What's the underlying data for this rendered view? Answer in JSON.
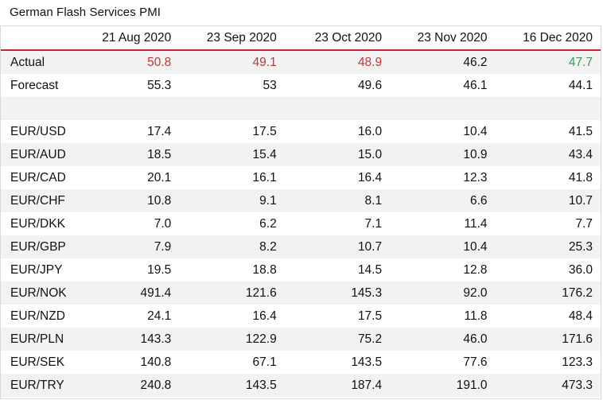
{
  "title": "German Flash Services PMI",
  "colors": {
    "header_rule": "#c0282f",
    "negative": "#c0393b",
    "positive": "#3a9a5b",
    "row_band": "#f2f2f2"
  },
  "chart_data": {
    "type": "table",
    "title": "German Flash Services PMI",
    "columns": [
      "21 Aug 2020",
      "23 Sep 2020",
      "23 Oct 2020",
      "23 Nov 2020",
      "16 Dec 2020"
    ],
    "rows": [
      {
        "label": "Actual",
        "values": [
          "50.8",
          "49.1",
          "48.9",
          "46.2",
          "47.7"
        ],
        "colors": [
          "red",
          "red",
          "red",
          "",
          "green"
        ]
      },
      {
        "label": "Forecast",
        "values": [
          "55.3",
          "53",
          "49.6",
          "46.1",
          "44.1"
        ]
      },
      {
        "label": "",
        "values": [
          "",
          "",
          "",
          "",
          ""
        ],
        "spacer": true
      },
      {
        "label": "EUR/USD",
        "values": [
          "17.4",
          "17.5",
          "16.0",
          "10.4",
          "41.5"
        ]
      },
      {
        "label": "EUR/AUD",
        "values": [
          "18.5",
          "15.4",
          "15.0",
          "10.9",
          "43.4"
        ]
      },
      {
        "label": "EUR/CAD",
        "values": [
          "20.1",
          "16.1",
          "16.4",
          "12.3",
          "41.8"
        ]
      },
      {
        "label": "EUR/CHF",
        "values": [
          "10.8",
          "9.1",
          "8.1",
          "6.6",
          "10.7"
        ]
      },
      {
        "label": "EUR/DKK",
        "values": [
          "7.0",
          "6.2",
          "7.1",
          "11.4",
          "7.7"
        ]
      },
      {
        "label": "EUR/GBP",
        "values": [
          "7.9",
          "8.2",
          "10.7",
          "10.4",
          "25.3"
        ]
      },
      {
        "label": "EUR/JPY",
        "values": [
          "19.5",
          "18.8",
          "14.5",
          "12.8",
          "36.0"
        ]
      },
      {
        "label": "EUR/NOK",
        "values": [
          "491.4",
          "121.6",
          "145.3",
          "92.0",
          "176.2"
        ]
      },
      {
        "label": "EUR/NZD",
        "values": [
          "24.1",
          "16.4",
          "17.5",
          "11.8",
          "48.4"
        ]
      },
      {
        "label": "EUR/PLN",
        "values": [
          "143.3",
          "122.9",
          "75.2",
          "46.0",
          "171.6"
        ]
      },
      {
        "label": "EUR/SEK",
        "values": [
          "140.8",
          "67.1",
          "143.5",
          "77.6",
          "123.3"
        ]
      },
      {
        "label": "EUR/TRY",
        "values": [
          "240.8",
          "143.5",
          "187.4",
          "191.0",
          "473.3"
        ]
      }
    ]
  }
}
